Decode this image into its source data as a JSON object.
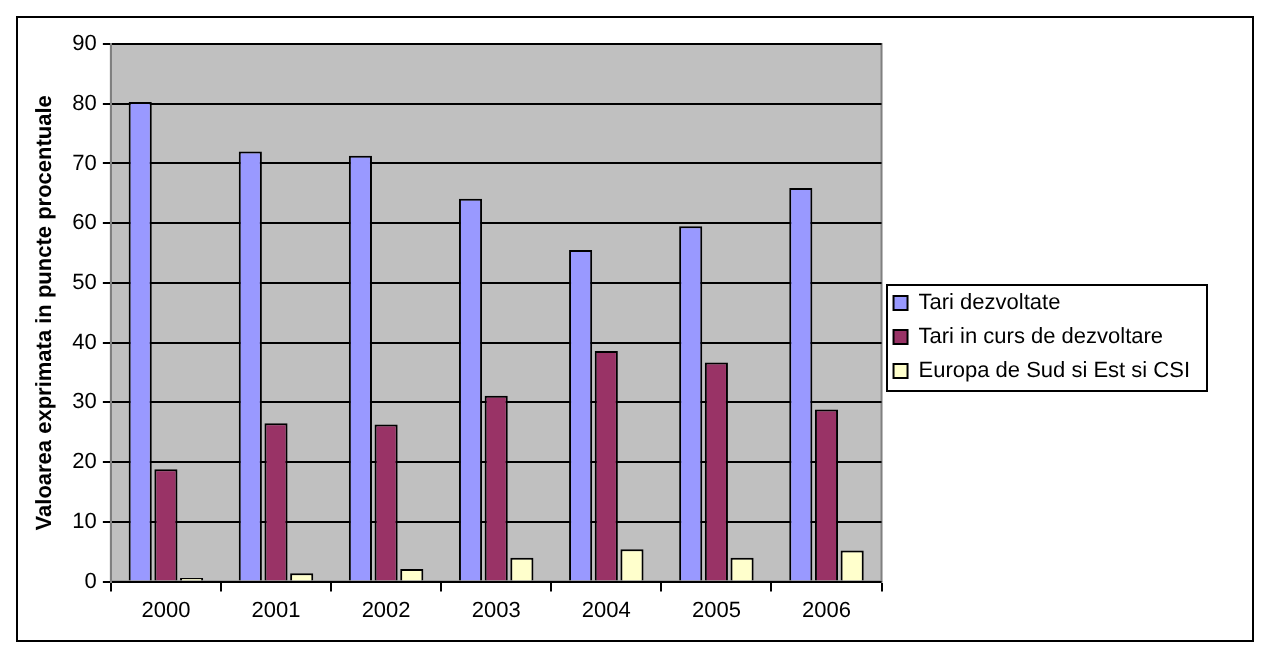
{
  "chart_data": {
    "type": "bar",
    "ylabel": "Valoarea exprimata in puncte procentuale",
    "categories": [
      "2000",
      "2001",
      "2002",
      "2003",
      "2004",
      "2005",
      "2006"
    ],
    "series": [
      {
        "name": "Tari dezvoltate",
        "color": "#9999ff",
        "values": [
          80.3,
          72.0,
          71.3,
          64.1,
          55.5,
          59.5,
          65.9
        ]
      },
      {
        "name": "Tari in curs de dezvoltare",
        "color": "#993366",
        "values": [
          18.8,
          26.5,
          26.3,
          31.1,
          38.6,
          36.7,
          28.8
        ]
      },
      {
        "name": "Europa de Sud si Est si CSI",
        "color": "#ffffcc",
        "values": [
          0.6,
          1.4,
          2.1,
          4.0,
          5.4,
          4.0,
          5.2
        ]
      }
    ],
    "ylim": [
      0,
      90
    ],
    "yticks": [
      0,
      10,
      20,
      30,
      40,
      50,
      60,
      70,
      80,
      90
    ],
    "grid": "y",
    "legend": "right"
  }
}
